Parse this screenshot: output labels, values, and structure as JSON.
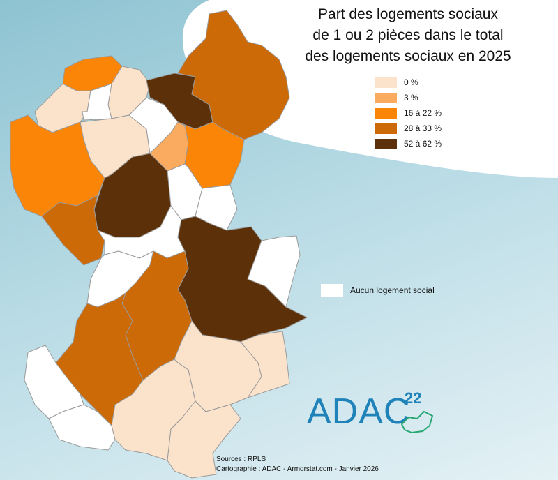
{
  "title": {
    "line1": "Part des logements sociaux",
    "line2": "de 1 ou 2 pièces dans le total",
    "line3": "des logements sociaux en 2025"
  },
  "legend": [
    {
      "label": "0 %",
      "color": "#fbe2cb"
    },
    {
      "label": "3 %",
      "color": "#fbab60"
    },
    {
      "label": "16 à 22 %",
      "color": "#fb8507"
    },
    {
      "label": "28 à 33 %",
      "color": "#cb6a06"
    },
    {
      "label": "52 à 62 %",
      "color": "#5c3008"
    }
  ],
  "no_data": {
    "label": "Aucun logement social",
    "color": "#ffffff"
  },
  "logo": {
    "text": "ADAC",
    "superscript": "22"
  },
  "sources": {
    "line1": "Sources : RPLS",
    "line2": "Cartographie : ADAC - Armorstat.com - Janvier 2026"
  },
  "communes": [
    {
      "id": "c1",
      "class": 2
    },
    {
      "id": "c2",
      "class": 0
    },
    {
      "id": "c3",
      "class": 0
    },
    {
      "id": "c4",
      "class": "none"
    },
    {
      "id": "c5",
      "class": 4
    },
    {
      "id": "c6",
      "class": 3
    },
    {
      "id": "c7",
      "class": 2
    },
    {
      "id": "c8",
      "class": 0
    },
    {
      "id": "c9",
      "class": "none"
    },
    {
      "id": "c10",
      "class": 1
    },
    {
      "id": "c11",
      "class": 2
    },
    {
      "id": "c12",
      "class": 4
    },
    {
      "id": "c13",
      "class": "none"
    },
    {
      "id": "c14",
      "class": "none"
    },
    {
      "id": "c15",
      "class": 3
    },
    {
      "id": "c16",
      "class": "none"
    },
    {
      "id": "c17",
      "class": 4
    },
    {
      "id": "c18",
      "class": "none"
    },
    {
      "id": "c19",
      "class": "none"
    },
    {
      "id": "c20",
      "class": 3
    },
    {
      "id": "c21",
      "class": 3
    },
    {
      "id": "c22",
      "class": 0
    },
    {
      "id": "c23",
      "class": 0
    },
    {
      "id": "c24",
      "class": "none"
    },
    {
      "id": "c25",
      "class": "none"
    },
    {
      "id": "c26",
      "class": 0
    },
    {
      "id": "c27",
      "class": 0
    }
  ]
}
